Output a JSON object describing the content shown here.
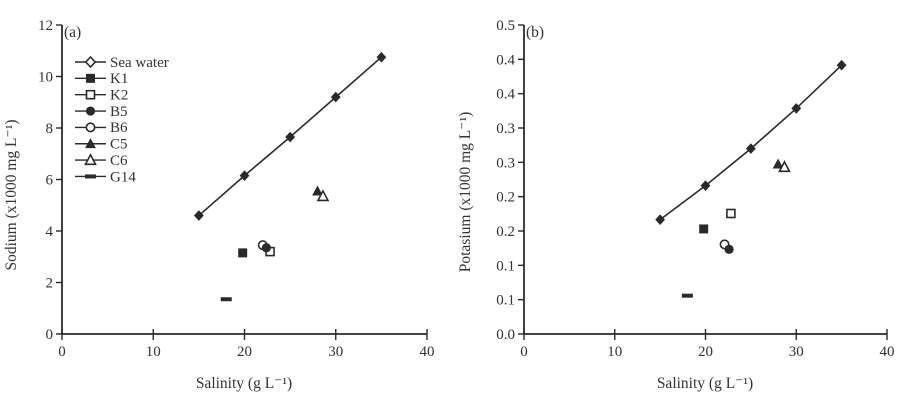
{
  "colors": {
    "ink": "#2a2a2a",
    "text": "#333333",
    "background": "#ffffff"
  },
  "chart_data": [
    {
      "type": "scatter",
      "panel_label": "(a)",
      "xlabel": "Salinity (g L⁻¹)",
      "ylabel": "Sodium (x1000 mg L⁻¹)",
      "xlim": [
        0,
        40
      ],
      "ylim": [
        0,
        12
      ],
      "xticks": [
        "0",
        "10",
        "20",
        "30",
        "40"
      ],
      "yticks": [
        "0",
        "2",
        "4",
        "6",
        "8",
        "10",
        "12"
      ],
      "grid": false,
      "legend_position": "top-left-inside",
      "series": [
        {
          "name": "Sea water",
          "marker": "diamond-filled",
          "legend_marker": "diamond-open",
          "line": true,
          "points": [
            [
              15,
              4.6
            ],
            [
              20,
              6.15
            ],
            [
              25,
              7.65
            ],
            [
              30,
              9.2
            ],
            [
              35,
              10.75
            ]
          ]
        },
        {
          "name": "K1",
          "marker": "square-filled",
          "line": false,
          "points": [
            [
              19.8,
              3.15
            ]
          ]
        },
        {
          "name": "K2",
          "marker": "square-open",
          "line": false,
          "points": [
            [
              22.8,
              3.2
            ]
          ]
        },
        {
          "name": "B5",
          "marker": "circle-filled",
          "line": false,
          "points": [
            [
              22.4,
              3.35
            ]
          ]
        },
        {
          "name": "B6",
          "marker": "circle-open",
          "line": false,
          "points": [
            [
              22.0,
              3.45
            ]
          ]
        },
        {
          "name": "C5",
          "marker": "triangle-filled",
          "line": false,
          "points": [
            [
              28.0,
              5.55
            ]
          ]
        },
        {
          "name": "C6",
          "marker": "triangle-open",
          "line": false,
          "points": [
            [
              28.6,
              5.35
            ]
          ]
        },
        {
          "name": "G14",
          "marker": "dash-filled",
          "line": false,
          "points": [
            [
              18.0,
              1.35
            ]
          ]
        }
      ]
    },
    {
      "type": "scatter",
      "panel_label": "(b)",
      "xlabel": "Salinity (g L⁻¹)",
      "ylabel": "Potasium (x1000 mg L⁻¹)",
      "xlim": [
        0,
        40
      ],
      "ylim": [
        0,
        0.5
      ],
      "xticks": [
        "0",
        "10",
        "20",
        "30",
        "40"
      ],
      "yticks": [
        "0.0",
        "0.1",
        "0.1",
        "0.2",
        "0.2",
        "0.3",
        "0.3",
        "0.4",
        "0.4",
        "0.5"
      ],
      "grid": false,
      "legend_position": "none",
      "series": [
        {
          "name": "Sea water",
          "marker": "diamond-filled",
          "legend_marker": "diamond-open",
          "line": true,
          "points": [
            [
              15,
              0.185
            ],
            [
              20,
              0.24
            ],
            [
              25,
              0.3
            ],
            [
              30,
              0.365
            ],
            [
              35,
              0.435
            ]
          ]
        },
        {
          "name": "K1",
          "marker": "square-filled",
          "line": false,
          "points": [
            [
              19.8,
              0.17
            ]
          ]
        },
        {
          "name": "K2",
          "marker": "square-open",
          "line": false,
          "points": [
            [
              22.8,
              0.195
            ]
          ]
        },
        {
          "name": "B5",
          "marker": "circle-filled",
          "line": false,
          "points": [
            [
              22.6,
              0.137
            ]
          ]
        },
        {
          "name": "B6",
          "marker": "circle-open",
          "line": false,
          "points": [
            [
              22.1,
              0.145
            ]
          ]
        },
        {
          "name": "C5",
          "marker": "triangle-filled",
          "line": false,
          "points": [
            [
              28.0,
              0.275
            ]
          ]
        },
        {
          "name": "C6",
          "marker": "triangle-open",
          "line": false,
          "points": [
            [
              28.7,
              0.27
            ]
          ]
        },
        {
          "name": "G14",
          "marker": "dash-filled",
          "line": false,
          "points": [
            [
              18.0,
              0.062
            ]
          ]
        }
      ]
    }
  ]
}
